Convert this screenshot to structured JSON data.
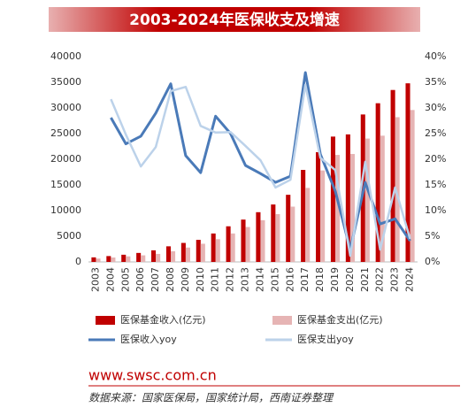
{
  "chart_data": {
    "type": "combo",
    "title": "2003-2024年医保收支及增速",
    "categories": [
      "2003",
      "2004",
      "2005",
      "2006",
      "2007",
      "2008",
      "2009",
      "2010",
      "2011",
      "2012",
      "2013",
      "2014",
      "2015",
      "2016",
      "2017",
      "2018",
      "2019",
      "2020",
      "2021",
      "2022",
      "2023",
      "2024"
    ],
    "series": [
      {
        "name": "医保基金收入(亿元)",
        "type": "bar",
        "color": "#c00000",
        "axis": "y",
        "values": [
          890,
          1140,
          1400,
          1750,
          2260,
          3040,
          3700,
          4300,
          5540,
          6940,
          8250,
          9690,
          11190,
          13080,
          17930,
          21380,
          24420,
          24850,
          28730,
          30920,
          33500,
          34800
        ]
      },
      {
        "name": "医保基金支出(亿元)",
        "type": "bar",
        "color": "#e6b4b4",
        "axis": "y",
        "values": [
          650,
          860,
          1080,
          1280,
          1560,
          2080,
          2800,
          3540,
          4430,
          5540,
          6800,
          8130,
          9310,
          10770,
          14420,
          17820,
          20850,
          21030,
          24040,
          24600,
          28200,
          29600
        ]
      },
      {
        "name": "医保收入yoy",
        "type": "line",
        "color": "#4a7ab8",
        "axis": "y2",
        "values": [
          null,
          28.1,
          23,
          24.5,
          29,
          34.7,
          20.7,
          17.4,
          28.4,
          25,
          18.8,
          17.2,
          15.5,
          16.7,
          36.9,
          21,
          13.8,
          2.4,
          15.5,
          7.4,
          8.4,
          4.1
        ]
      },
      {
        "name": "医保支出yoy",
        "type": "line",
        "color": "#bcd2ea",
        "axis": "y2",
        "values": [
          null,
          31.7,
          24.8,
          18.6,
          22.4,
          33.3,
          34.1,
          26.5,
          25.2,
          25.3,
          22.6,
          19.8,
          14.5,
          16,
          34.5,
          20.3,
          17.9,
          1.2,
          19.5,
          2.4,
          14.5,
          4.5
        ]
      }
    ],
    "ylim": [
      0,
      40000
    ],
    "yticks": [
      0,
      5000,
      10000,
      15000,
      20000,
      25000,
      30000,
      35000,
      40000
    ],
    "y2lim": [
      0,
      40
    ],
    "y2ticks": [
      {
        "value": 0,
        "label": "0%"
      },
      {
        "value": 5,
        "label": "5%"
      },
      {
        "value": 10,
        "label": "10%"
      },
      {
        "value": 15,
        "label": "15%"
      },
      {
        "value": 20,
        "label": "20%"
      },
      {
        "value": 25,
        "label": "25%"
      },
      {
        "value": 30,
        "label": "30%"
      },
      {
        "value": 35,
        "label": "35%"
      },
      {
        "value": 40,
        "label": "40%"
      }
    ],
    "grid": false,
    "website": "www.swsc.com.cn",
    "source": "数据来源：国家医保局，国家统计局，西南证券整理"
  }
}
